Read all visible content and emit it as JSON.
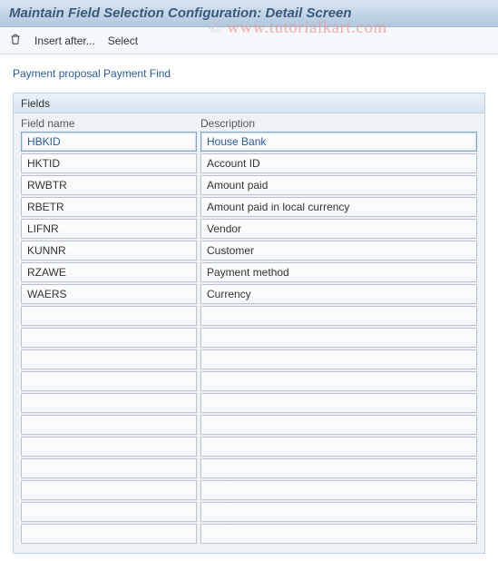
{
  "title": "Maintain Field Selection Configuration: Detail Screen",
  "toolbar": {
    "insert_after": "Insert after...",
    "select": "Select"
  },
  "context_text": "Payment proposal Payment Find",
  "panel": {
    "title": "Fields",
    "col_field_name": "Field name",
    "col_description": "Description"
  },
  "rows": [
    {
      "field": "HBKID",
      "desc": "House Bank",
      "selected": true
    },
    {
      "field": "HKTID",
      "desc": "Account ID",
      "selected": false
    },
    {
      "field": "RWBTR",
      "desc": "Amount paid",
      "selected": false
    },
    {
      "field": "RBETR",
      "desc": "Amount paid in local currency",
      "selected": false
    },
    {
      "field": "LIFNR",
      "desc": "Vendor",
      "selected": false
    },
    {
      "field": "KUNNR",
      "desc": "Customer",
      "selected": false
    },
    {
      "field": "RZAWE",
      "desc": "Payment method",
      "selected": false
    },
    {
      "field": "WAERS",
      "desc": "Currency",
      "selected": false
    },
    {
      "field": "",
      "desc": "",
      "selected": false
    },
    {
      "field": "",
      "desc": "",
      "selected": false
    },
    {
      "field": "",
      "desc": "",
      "selected": false
    },
    {
      "field": "",
      "desc": "",
      "selected": false
    },
    {
      "field": "",
      "desc": "",
      "selected": false
    },
    {
      "field": "",
      "desc": "",
      "selected": false
    },
    {
      "field": "",
      "desc": "",
      "selected": false
    },
    {
      "field": "",
      "desc": "",
      "selected": false
    },
    {
      "field": "",
      "desc": "",
      "selected": false
    },
    {
      "field": "",
      "desc": "",
      "selected": false
    },
    {
      "field": "",
      "desc": "",
      "selected": false
    }
  ],
  "watermark": {
    "copyright": "© ",
    "text": "www.tutorialkart.com"
  },
  "colors": {
    "title_text": "#3a5a7a",
    "link_text": "#2a5aa0",
    "cell_border": "#b9c4cf",
    "panel_border": "#c3d0dd",
    "panel_bg": "#eef2f7"
  }
}
